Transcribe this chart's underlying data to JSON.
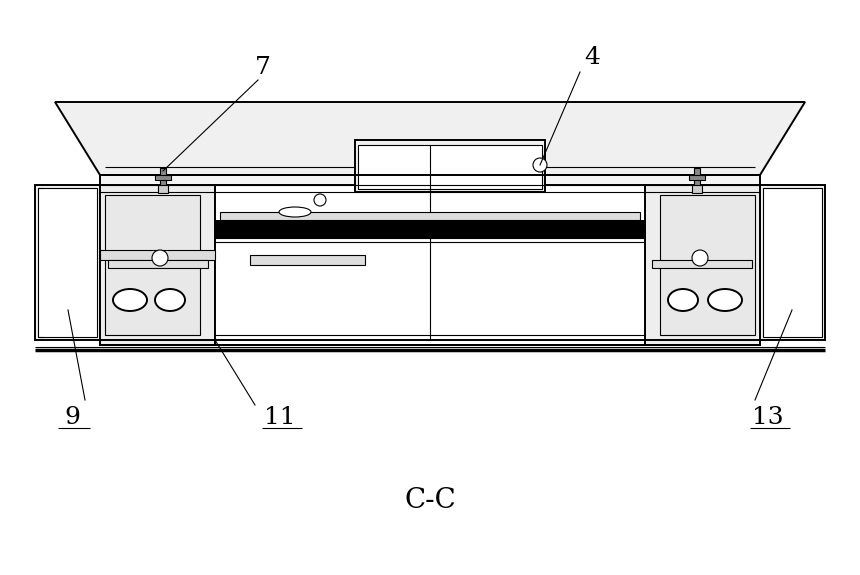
{
  "bg_color": "#ffffff",
  "line_color": "#000000",
  "title": "C-C",
  "title_fontsize": 20
}
